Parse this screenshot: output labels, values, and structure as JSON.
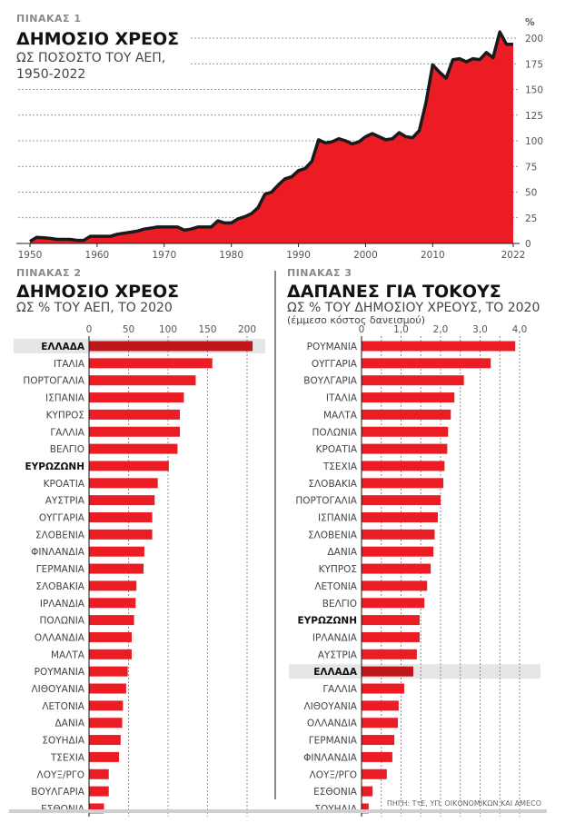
{
  "colors": {
    "bar": "#ec1c24",
    "highlight_bar": "#c0151c",
    "highlight_bg": "#e6e6e6",
    "line": "#1a1a1a"
  },
  "source": "ΠΗΓΗ: ΤτΕ, ΥΠ. ΟΙΚΟΝΟΜΙΚΩΝ ΚΑΙ AMECO",
  "chart_data": [
    {
      "type": "area",
      "kicker": "ΠΙΝΑΚΑΣ 1",
      "title": "ΔΗΜΟΣΙΟ ΧΡΕΟΣ",
      "subtitle_lines": [
        "ΩΣ ΠΟΣΟΣΤΟ ΤΟΥ ΑΕΠ,",
        "1950-2022"
      ],
      "ylabel": "%",
      "xlim": [
        1950,
        2022
      ],
      "ylim": [
        0,
        200
      ],
      "yticks": [
        0,
        25,
        50,
        75,
        100,
        125,
        150,
        175,
        200
      ],
      "xticks": [
        1950,
        1960,
        1970,
        1980,
        1990,
        2000,
        2010,
        2022
      ],
      "x_start": 1950,
      "values": [
        2,
        6,
        5.5,
        5,
        4,
        4,
        4,
        3,
        3,
        7,
        7,
        7,
        7,
        9,
        10,
        11,
        12,
        14,
        15,
        16,
        16,
        16,
        16,
        13,
        14,
        16,
        16,
        16,
        22,
        20,
        20,
        24,
        26,
        29,
        35,
        48,
        50,
        57,
        63,
        65,
        71,
        73,
        80,
        101,
        98,
        99,
        102,
        100,
        97,
        99,
        104,
        107,
        104,
        101,
        102,
        108,
        104,
        103,
        110,
        137,
        174,
        167,
        161,
        179,
        180,
        177,
        180,
        179,
        186,
        181,
        206,
        194,
        194
      ]
    },
    {
      "type": "bar",
      "kicker": "ΠΙΝΑΚΑΣ 2",
      "title": "ΔΗΜΟΣΙΟ ΧΡΕΟΣ",
      "subtitle": "ΩΣ % ΤΟΥ ΑΕΠ, ΤΟ 2020",
      "xlim": [
        0,
        220
      ],
      "xticks": [
        0,
        50,
        100,
        150,
        200
      ],
      "tick_labels": [
        "0",
        "50",
        "100",
        "150",
        "200"
      ],
      "grid_step": 50,
      "highlight": "ΕΛΛΑΔΑ",
      "bold": [
        "ΕΛΛΑΔΑ",
        "ΕΥΡΩΖΩΝΗ"
      ],
      "categories": [
        "ΕΛΛΑΔΑ",
        "ΙΤΑΛΙΑ",
        "ΠΟΡΤΟΓΑΛΙΑ",
        "ΙΣΠΑΝΙΑ",
        "ΚΥΠΡΟΣ",
        "ΓΑΛΛΙΑ",
        "ΒΕΛΓΙΟ",
        "ΕΥΡΩΖΩΝΗ",
        "ΚΡΟΑΤΙΑ",
        "ΑΥΣΤΡΙΑ",
        "ΟΥΓΓΑΡΙΑ",
        "ΣΛΟΒΕΝΙΑ",
        "ΦΙΝΛΑΝΔΙΑ",
        "ΓΕΡΜΑΝΙΑ",
        "ΣΛΟΒΑΚΙΑ",
        "ΙΡΛΑΝΔΙΑ",
        "ΠΟΛΩΝΙΑ",
        "ΟΛΛΑΝΔΙΑ",
        "ΜΑΛΤΑ",
        "ΡΟΥΜΑΝΙΑ",
        "ΛΙΘΟΥΑΝΙΑ",
        "ΛΕΤΟΝΙΑ",
        "ΔΑΝΙΑ",
        "ΣΟΥΗΔΙΑ",
        "ΤΣΕΧΙΑ",
        "ΛΟΥΞ/ΡΓΟ",
        "ΒΟΥΛΓΑΡΙΑ",
        "ΕΣΘΟΝΙΑ"
      ],
      "values": [
        207,
        156,
        135,
        120,
        115,
        115,
        112,
        101,
        87,
        83,
        80,
        80,
        70,
        69,
        60,
        59,
        57,
        54,
        54,
        49,
        47,
        43,
        42,
        40,
        38,
        25,
        25,
        19
      ]
    },
    {
      "type": "bar",
      "kicker": "ΠΙΝΑΚΑΣ 3",
      "title": "ΔΑΠΑΝΕΣ ΓΙΑ ΤΟΚΟΥΣ",
      "subtitle": "ΩΣ % ΤΟΥ ΔΗΜΟΣΙΟΥ ΧΡΕΟΥΣ, ΤΟ 2020",
      "note": "(έμμεσο κόστος δανεισμού)",
      "xlim": [
        0,
        4.4
      ],
      "xticks": [
        0,
        1,
        2,
        3,
        4
      ],
      "tick_labels": [
        "0",
        "1,0",
        "2,0",
        "3,0",
        "4,0"
      ],
      "grid_step": 0.5,
      "highlight": "ΕΛΛΑΔΑ",
      "bold": [
        "ΕΛΛΑΔΑ",
        "ΕΥΡΩΖΩΝΗ"
      ],
      "categories": [
        "ΡΟΥΜΑΝΙΑ",
        "ΟΥΓΓΑΡΙΑ",
        "ΒΟΥΛΓΑΡΙΑ",
        "ΙΤΑΛΙΑ",
        "ΜΑΛΤΑ",
        "ΠΟΛΩΝΙΑ",
        "ΚΡΟΑΤΙΑ",
        "ΤΣΕΧΙΑ",
        "ΣΛΟΒΑΚΙΑ",
        "ΠΟΡΤΟΓΑΛΙΑ",
        "ΙΣΠΑΝΙΑ",
        "ΣΛΟΒΕΝΙΑ",
        "ΔΑΝΙΑ",
        "ΚΥΠΡΟΣ",
        "ΛΕΤΟΝΙΑ",
        "ΒΕΛΓΙΟ",
        "ΕΥΡΩΖΩΝΗ",
        "ΙΡΛΑΝΔΙΑ",
        "ΑΥΣΤΡΙΑ",
        "ΕΛΛΑΔΑ",
        "ΓΑΛΛΙΑ",
        "ΛΙΘΟΥΑΝΙΑ",
        "ΟΛΛΑΝΔΙΑ",
        "ΓΕΡΜΑΝΙΑ",
        "ΦΙΝΛΑΝΔΙΑ",
        "ΛΟΥΞ/ΡΓΟ",
        "ΕΣΘΟΝΙΑ",
        "ΣΟΥΗΔΙΑ"
      ],
      "values": [
        3.89,
        3.27,
        2.59,
        2.35,
        2.26,
        2.19,
        2.17,
        2.1,
        2.07,
        2.0,
        1.93,
        1.85,
        1.82,
        1.75,
        1.66,
        1.59,
        1.47,
        1.47,
        1.4,
        1.31,
        1.08,
        0.94,
        0.92,
        0.83,
        0.78,
        0.64,
        0.28,
        0.18
      ]
    }
  ]
}
